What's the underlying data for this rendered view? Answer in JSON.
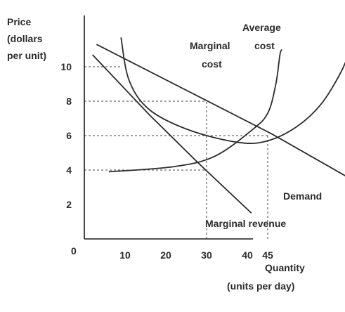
{
  "chart_data": {
    "type": "line",
    "ylabel_lines": [
      "Price",
      "(dollars",
      "per unit)"
    ],
    "xlabel_lines": [
      "Quantity",
      "(units per day)"
    ],
    "origin_label": "0",
    "x_ticks": [
      "10",
      "20",
      "30",
      "40",
      "45"
    ],
    "x_tick_values": [
      10,
      20,
      30,
      40,
      45
    ],
    "y_ticks": [
      "2",
      "4",
      "6",
      "8",
      "10"
    ],
    "y_tick_values": [
      2,
      4,
      6,
      8,
      10
    ],
    "xlim": [
      0,
      67
    ],
    "ylim": [
      0,
      13.5
    ],
    "series": [
      {
        "name": "Demand",
        "values": [
          [
            3,
            11.3
          ],
          [
            46,
            6.1
          ],
          [
            66,
            3.4
          ]
        ]
      },
      {
        "name": "Marginal revenue",
        "values": [
          [
            2,
            10.7
          ],
          [
            16,
            7.2
          ],
          [
            28,
            4.4
          ],
          [
            41,
            1.5
          ]
        ]
      },
      {
        "name": "Marginal cost",
        "values": [
          [
            6,
            3.9
          ],
          [
            22,
            4.2
          ],
          [
            32,
            4.8
          ],
          [
            41,
            6.3
          ],
          [
            45,
            7.3
          ],
          [
            47,
            9.0
          ],
          [
            48,
            10.7
          ],
          [
            48.5,
            11.0
          ]
        ]
      },
      {
        "name": "Average cost",
        "values": [
          [
            9,
            11.7
          ],
          [
            11,
            9.2
          ],
          [
            16,
            7.5
          ],
          [
            26,
            6.3
          ],
          [
            38,
            5.6
          ],
          [
            45,
            5.7
          ],
          [
            52,
            6.5
          ],
          [
            58,
            7.8
          ],
          [
            63,
            9.7
          ],
          [
            66,
            11.4
          ],
          [
            67,
            11.6
          ]
        ]
      }
    ],
    "series_labels": {
      "demand": [
        "Demand"
      ],
      "marginal_revenue": [
        "Marginal revenue"
      ],
      "marginal_cost": [
        "Marginal",
        "cost"
      ],
      "average_cost": [
        "Average",
        "cost"
      ]
    },
    "guide_lines": [
      {
        "y": 10,
        "x_to": 9
      },
      {
        "y": 8,
        "x_to": 30
      },
      {
        "y": 6,
        "x_to": 45
      },
      {
        "y": 4,
        "x_to": 30
      },
      {
        "x": 30,
        "y_to": 8
      },
      {
        "x": 45,
        "y_to": 6
      }
    ],
    "grid": false,
    "colors": {
      "lines": "#2b2b2b",
      "axes": "#1a1a1a"
    }
  }
}
